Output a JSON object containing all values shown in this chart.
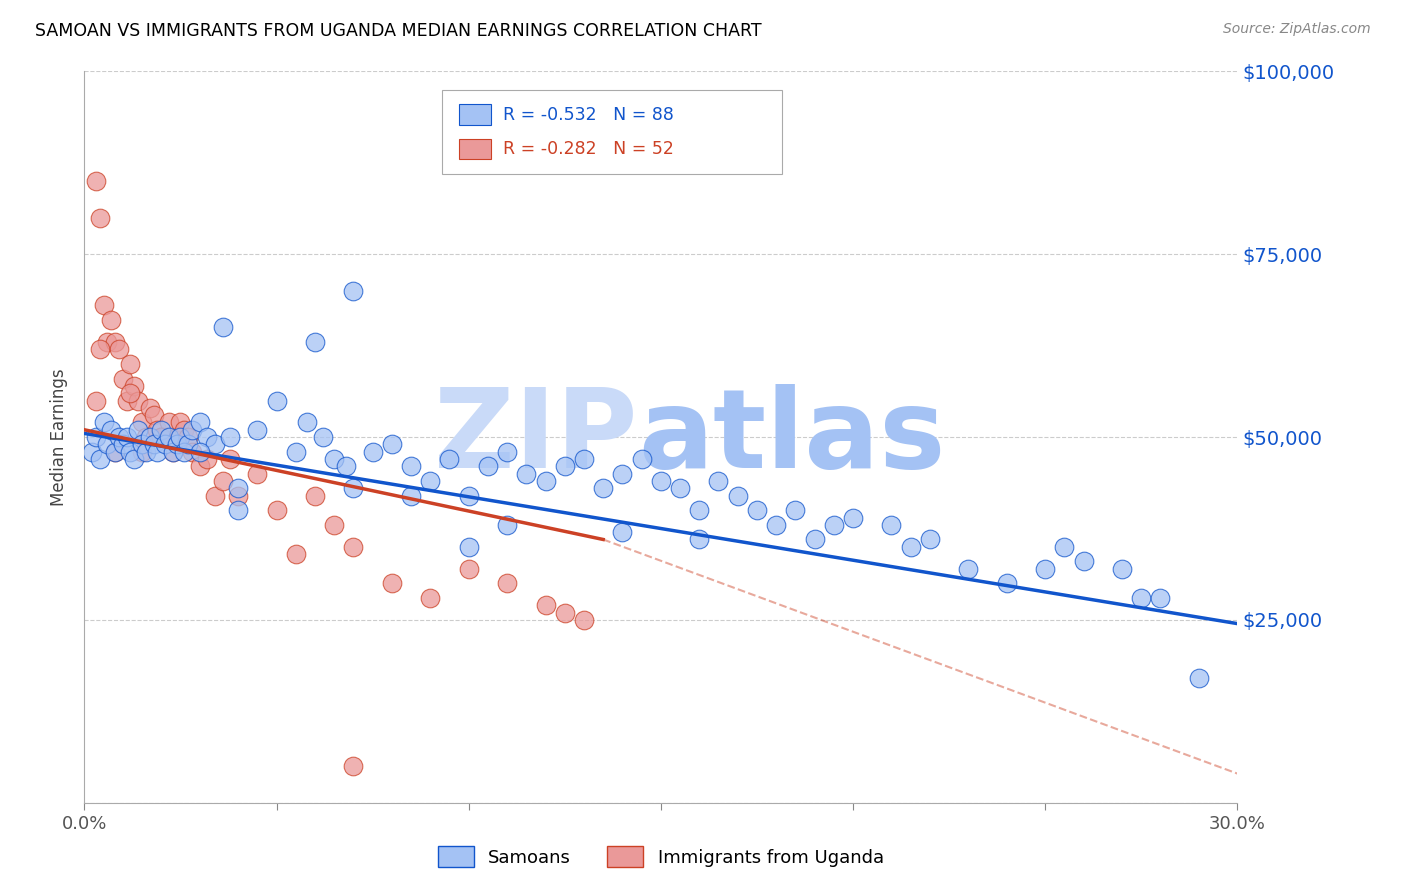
{
  "title": "SAMOAN VS IMMIGRANTS FROM UGANDA MEDIAN EARNINGS CORRELATION CHART",
  "source": "Source: ZipAtlas.com",
  "ylabel": "Median Earnings",
  "xmin": 0.0,
  "xmax": 0.3,
  "ymin": 0,
  "ymax": 100000,
  "yticks": [
    0,
    25000,
    50000,
    75000,
    100000
  ],
  "ytick_labels": [
    "",
    "$25,000",
    "$50,000",
    "$75,000",
    "$100,000"
  ],
  "xticks": [
    0.0,
    0.05,
    0.1,
    0.15,
    0.2,
    0.25,
    0.3
  ],
  "xtick_labels": [
    "0.0%",
    "",
    "",
    "",
    "",
    "",
    "30.0%"
  ],
  "blue_R": "-0.532",
  "blue_N": "88",
  "pink_R": "-0.282",
  "pink_N": "52",
  "blue_color": "#a4c2f4",
  "pink_color": "#ea9999",
  "blue_line_color": "#1155cc",
  "pink_line_color": "#cc4125",
  "axis_label_color": "#1155cc",
  "title_color": "#000000",
  "grid_color": "#cccccc",
  "watermark_zip_color": "#c9daf8",
  "watermark_atlas_color": "#a4c2f4",
  "legend_label_blue": "Samoans",
  "legend_label_pink": "Immigrants from Uganda",
  "blue_scatter_x": [
    0.002,
    0.003,
    0.004,
    0.005,
    0.006,
    0.007,
    0.008,
    0.009,
    0.01,
    0.011,
    0.012,
    0.013,
    0.014,
    0.015,
    0.016,
    0.017,
    0.018,
    0.019,
    0.02,
    0.021,
    0.022,
    0.023,
    0.024,
    0.025,
    0.026,
    0.027,
    0.028,
    0.03,
    0.032,
    0.034,
    0.036,
    0.038,
    0.04,
    0.045,
    0.05,
    0.055,
    0.058,
    0.06,
    0.062,
    0.065,
    0.068,
    0.07,
    0.075,
    0.08,
    0.085,
    0.09,
    0.095,
    0.1,
    0.105,
    0.11,
    0.115,
    0.12,
    0.125,
    0.13,
    0.135,
    0.14,
    0.145,
    0.15,
    0.155,
    0.16,
    0.165,
    0.17,
    0.175,
    0.18,
    0.185,
    0.19,
    0.195,
    0.2,
    0.21,
    0.215,
    0.22,
    0.23,
    0.24,
    0.25,
    0.255,
    0.26,
    0.27,
    0.275,
    0.28,
    0.29,
    0.03,
    0.04,
    0.07,
    0.11,
    0.14,
    0.16,
    0.085,
    0.1
  ],
  "blue_scatter_y": [
    48000,
    50000,
    47000,
    52000,
    49000,
    51000,
    48000,
    50000,
    49000,
    50000,
    48000,
    47000,
    51000,
    49000,
    48000,
    50000,
    49000,
    48000,
    51000,
    49000,
    50000,
    48000,
    49000,
    50000,
    48000,
    49000,
    51000,
    52000,
    50000,
    49000,
    65000,
    50000,
    43000,
    51000,
    55000,
    48000,
    52000,
    63000,
    50000,
    47000,
    46000,
    70000,
    48000,
    49000,
    46000,
    44000,
    47000,
    42000,
    46000,
    48000,
    45000,
    44000,
    46000,
    47000,
    43000,
    45000,
    47000,
    44000,
    43000,
    40000,
    44000,
    42000,
    40000,
    38000,
    40000,
    36000,
    38000,
    39000,
    38000,
    35000,
    36000,
    32000,
    30000,
    32000,
    35000,
    33000,
    32000,
    28000,
    28000,
    17000,
    48000,
    40000,
    43000,
    38000,
    37000,
    36000,
    42000,
    35000
  ],
  "pink_scatter_x": [
    0.003,
    0.004,
    0.005,
    0.006,
    0.007,
    0.008,
    0.009,
    0.01,
    0.011,
    0.012,
    0.013,
    0.014,
    0.015,
    0.016,
    0.017,
    0.018,
    0.019,
    0.02,
    0.021,
    0.022,
    0.023,
    0.024,
    0.025,
    0.026,
    0.027,
    0.028,
    0.03,
    0.032,
    0.034,
    0.036,
    0.038,
    0.04,
    0.045,
    0.05,
    0.055,
    0.06,
    0.065,
    0.07,
    0.08,
    0.09,
    0.1,
    0.11,
    0.12,
    0.125,
    0.13,
    0.003,
    0.004,
    0.008,
    0.012,
    0.015,
    0.02,
    0.07
  ],
  "pink_scatter_y": [
    85000,
    80000,
    68000,
    63000,
    66000,
    63000,
    62000,
    58000,
    55000,
    60000,
    57000,
    55000,
    52000,
    50000,
    54000,
    53000,
    51000,
    50000,
    50000,
    52000,
    48000,
    50000,
    52000,
    51000,
    50000,
    48000,
    46000,
    47000,
    42000,
    44000,
    47000,
    42000,
    45000,
    40000,
    34000,
    42000,
    38000,
    35000,
    30000,
    28000,
    32000,
    30000,
    27000,
    26000,
    25000,
    55000,
    62000,
    48000,
    56000,
    48000,
    50000,
    5000
  ],
  "blue_trend": [
    0.0,
    0.3,
    50500,
    24500
  ],
  "pink_solid_trend": [
    0.0,
    0.135,
    51000,
    36000
  ],
  "pink_dash_trend": [
    0.135,
    0.3,
    36000,
    4000
  ]
}
